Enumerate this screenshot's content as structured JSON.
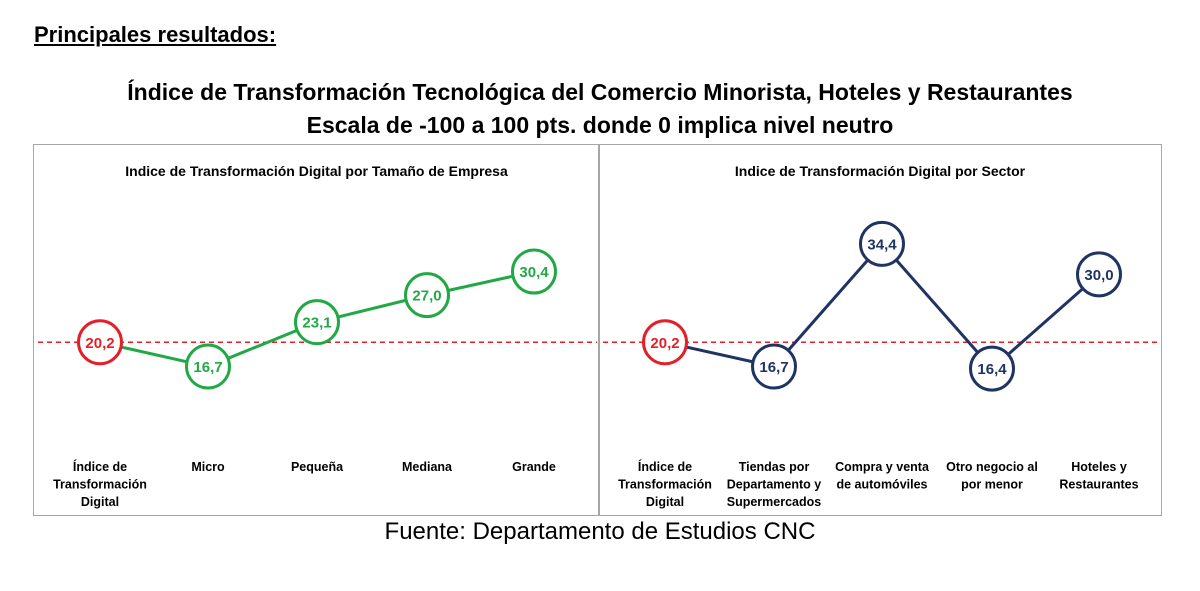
{
  "header": {
    "section_heading": "Principales resultados:",
    "title_line1": "Índice de Transformación Tecnológica del Comercio Minorista, Hoteles y Restaurantes",
    "title_line2": "Escala de -100 a 100 pts. donde 0 implica nivel neutro"
  },
  "footer": {
    "source": "Fuente: Departamento de Estudios CNC"
  },
  "colors": {
    "reference": "#e3202a",
    "size_series": "#22a846",
    "sector_series": "#1f3463",
    "dashed_line": "#e3202a"
  },
  "chart_data": [
    {
      "type": "line",
      "title": "Indice de Transformación Digital por Tamaño de Empresa",
      "categories": [
        [
          "Índice de",
          "Transformación",
          "Digital"
        ],
        [
          "Micro"
        ],
        [
          "Pequeña"
        ],
        [
          "Mediana"
        ],
        [
          "Grande"
        ]
      ],
      "values": [
        20.2,
        16.7,
        23.1,
        27.0,
        30.4
      ],
      "labels": [
        "20,2",
        "16,7",
        "23,1",
        "27,0",
        "30,4"
      ],
      "reference_line": 20.2,
      "reference_index": 0,
      "series_color": "#22a846",
      "ylim": [
        10,
        40
      ]
    },
    {
      "type": "line",
      "title": "Indice de Transformación Digital por Sector",
      "categories": [
        [
          "Índice de",
          "Transformación",
          "Digital"
        ],
        [
          "Tiendas por",
          "Departamento y",
          "Supermercados"
        ],
        [
          "Compra y venta",
          "de automóviles"
        ],
        [
          "Otro negocio al",
          "por menor"
        ],
        [
          "Hoteles y",
          "Restaurantes"
        ]
      ],
      "values": [
        20.2,
        16.7,
        34.4,
        16.4,
        30.0
      ],
      "labels": [
        "20,2",
        "16,7",
        "34,4",
        "16,4",
        "30,0"
      ],
      "reference_line": 20.2,
      "reference_index": 0,
      "series_color": "#1f3463",
      "ylim": [
        10,
        40
      ]
    }
  ]
}
